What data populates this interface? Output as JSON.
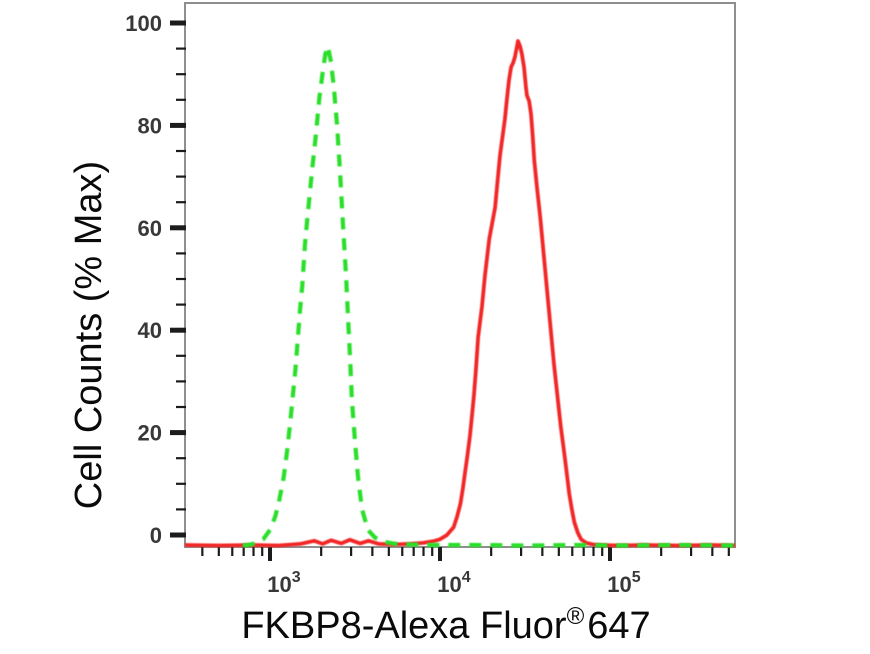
{
  "figure": {
    "kind": "flow-cytometry-histogram",
    "background": "#ffffff"
  },
  "chart_data": {
    "type": "line",
    "subtype": "flow_cytometry_histogram_overlay",
    "title": "",
    "xlabel": {
      "text": "FKBP8-Alexa Fluor",
      "sup": "®",
      "suffix": "647",
      "full": "FKBP8-Alexa Fluor® 647"
    },
    "ylabel": "Cell Counts (% Max)",
    "x_scale": "log10",
    "x_range_log10": [
      2.5,
      5.735
    ],
    "ylim": [
      0,
      100
    ],
    "grid": false,
    "legend": "none",
    "y_ticks": [
      0,
      20,
      40,
      60,
      80,
      100
    ],
    "y_minor_step": 5,
    "x_major_ticks": [
      1000,
      10000,
      100000
    ],
    "x_tick_base": "10",
    "x_tick_exponents": [
      "3",
      "4",
      "5"
    ],
    "axis": {
      "frame_color": "#8f8f8f",
      "tick_color": "#1c1c1c",
      "tick_label_color": "#383838",
      "label_color": "#0a0a0a"
    },
    "series": [
      {
        "name": "red solid histogram (FKBP8 stained)",
        "line_style": "solid",
        "color": "#f22525",
        "peak": {
          "x_log10": 4.459,
          "x": 28800,
          "y_pct": 97
        },
        "points_log10x_pct": [
          [
            2.5,
            0.1
          ],
          [
            2.7,
            0
          ],
          [
            2.9,
            0.1
          ],
          [
            3.05,
            0
          ],
          [
            3.18,
            0.3
          ],
          [
            3.26,
            0.9
          ],
          [
            3.31,
            0.3
          ],
          [
            3.36,
            1.0
          ],
          [
            3.42,
            0.4
          ],
          [
            3.47,
            1.1
          ],
          [
            3.53,
            0.4
          ],
          [
            3.58,
            0.9
          ],
          [
            3.64,
            0.3
          ],
          [
            3.72,
            0.2
          ],
          [
            3.82,
            0.3
          ],
          [
            3.9,
            0.5
          ],
          [
            3.96,
            0.8
          ],
          [
            4.0,
            1.2
          ],
          [
            4.04,
            2
          ],
          [
            4.08,
            3.5
          ],
          [
            4.1,
            5.5
          ],
          [
            4.12,
            8
          ],
          [
            4.135,
            11
          ],
          [
            4.147,
            14
          ],
          [
            4.16,
            17
          ],
          [
            4.176,
            21
          ],
          [
            4.188,
            25
          ],
          [
            4.2,
            29
          ],
          [
            4.212,
            34
          ],
          [
            4.224,
            40
          ],
          [
            4.247,
            46
          ],
          [
            4.265,
            52
          ],
          [
            4.29,
            59
          ],
          [
            4.324,
            65
          ],
          [
            4.341,
            71
          ],
          [
            4.353,
            75
          ],
          [
            4.365,
            78
          ],
          [
            4.382,
            82
          ],
          [
            4.394,
            86
          ],
          [
            4.406,
            89.5
          ],
          [
            4.418,
            92
          ],
          [
            4.43,
            92.8
          ],
          [
            4.441,
            94
          ],
          [
            4.451,
            95.7
          ],
          [
            4.459,
            97
          ],
          [
            4.471,
            96
          ],
          [
            4.482,
            94.5
          ],
          [
            4.494,
            92
          ],
          [
            4.5,
            90
          ],
          [
            4.506,
            88
          ],
          [
            4.512,
            86.5
          ],
          [
            4.524,
            85.5
          ],
          [
            4.535,
            83
          ],
          [
            4.545,
            79
          ],
          [
            4.555,
            74
          ],
          [
            4.57,
            69
          ],
          [
            4.59,
            63
          ],
          [
            4.61,
            56
          ],
          [
            4.63,
            49
          ],
          [
            4.65,
            42
          ],
          [
            4.67,
            35
          ],
          [
            4.69,
            29
          ],
          [
            4.71,
            23
          ],
          [
            4.73,
            18
          ],
          [
            4.745,
            14
          ],
          [
            4.76,
            10
          ],
          [
            4.775,
            7
          ],
          [
            4.79,
            4.5
          ],
          [
            4.81,
            2.5
          ],
          [
            4.83,
            1.2
          ],
          [
            4.86,
            0.5
          ],
          [
            4.9,
            0.2
          ],
          [
            4.95,
            0.1
          ],
          [
            5.05,
            0
          ],
          [
            5.2,
            0.1
          ],
          [
            5.4,
            0
          ],
          [
            5.6,
            0.1
          ],
          [
            5.735,
            0
          ]
        ]
      },
      {
        "name": "green dashed histogram (negative control)",
        "line_style": "dashed",
        "color": "#2bdf2b",
        "peak": {
          "x_log10": 3.34,
          "x": 2190,
          "y_pct": 96
        },
        "points_log10x_pct": [
          [
            2.84,
            0
          ],
          [
            2.87,
            0.1
          ],
          [
            2.9,
            0.3
          ],
          [
            2.93,
            0.7
          ],
          [
            2.96,
            1.2
          ],
          [
            3.0,
            3
          ],
          [
            3.03,
            5.5
          ],
          [
            3.05,
            8
          ],
          [
            3.08,
            13
          ],
          [
            3.1,
            18
          ],
          [
            3.12,
            24
          ],
          [
            3.15,
            34
          ],
          [
            3.176,
            45
          ],
          [
            3.19,
            50
          ],
          [
            3.206,
            58
          ],
          [
            3.22,
            63
          ],
          [
            3.247,
            72
          ],
          [
            3.27,
            79
          ],
          [
            3.29,
            86
          ],
          [
            3.31,
            91
          ],
          [
            3.325,
            94.5
          ],
          [
            3.34,
            96
          ],
          [
            3.359,
            93
          ],
          [
            3.376,
            88
          ],
          [
            3.394,
            81
          ],
          [
            3.412,
            72
          ],
          [
            3.429,
            62
          ],
          [
            3.447,
            52
          ],
          [
            3.459,
            44
          ],
          [
            3.471,
            36
          ],
          [
            3.482,
            28
          ],
          [
            3.5,
            20
          ],
          [
            3.518,
            13
          ],
          [
            3.541,
            7
          ],
          [
            3.576,
            3
          ],
          [
            3.618,
            1.5
          ],
          [
            3.676,
            0.7
          ],
          [
            3.74,
            0.3
          ],
          [
            3.82,
            0.2
          ],
          [
            3.95,
            0.1
          ],
          [
            4.2,
            0.1
          ],
          [
            4.5,
            0
          ],
          [
            4.8,
            0.1
          ],
          [
            5.1,
            0
          ],
          [
            5.4,
            0.1
          ],
          [
            5.735,
            0
          ]
        ]
      }
    ]
  }
}
